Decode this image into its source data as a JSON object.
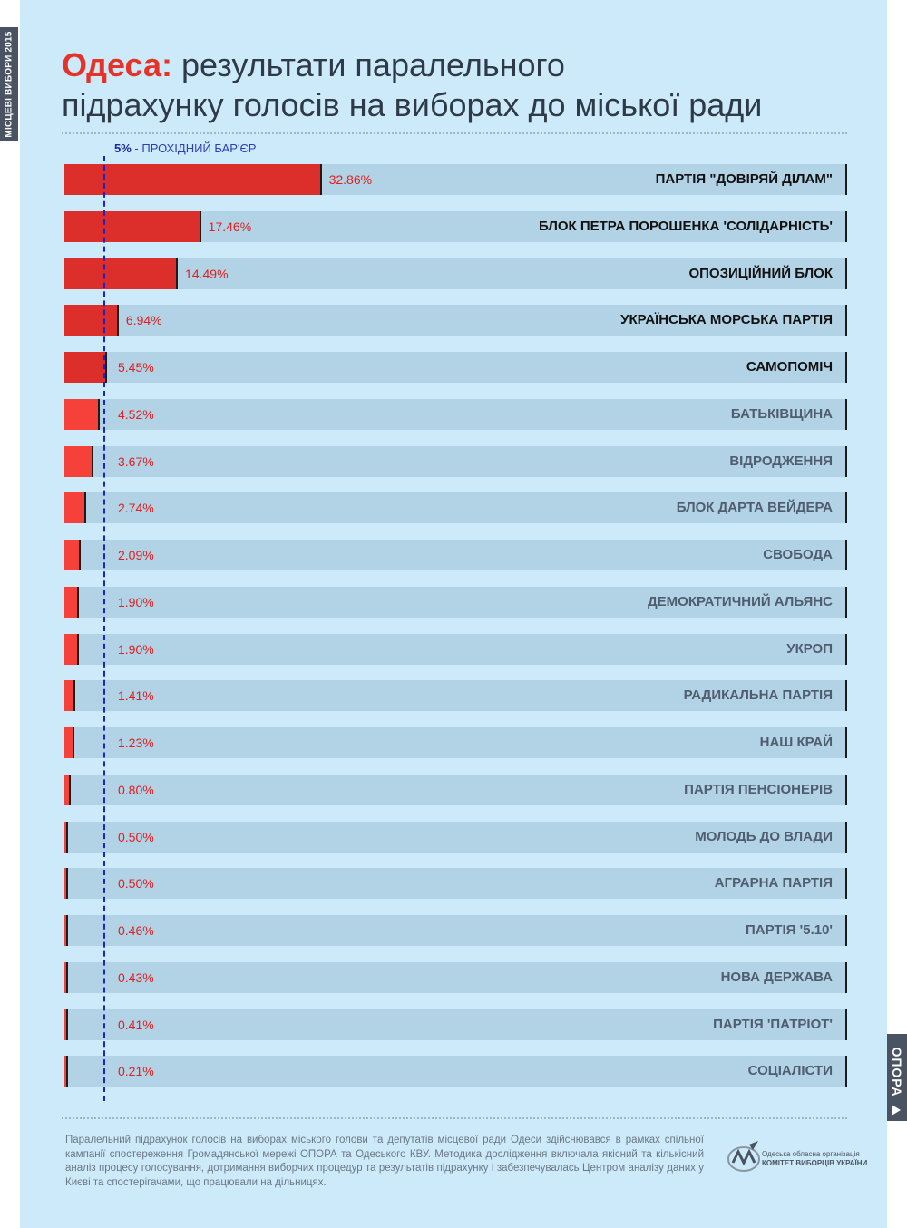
{
  "side_label": "МІСЦЕВІ ВИБОРИ 2015",
  "title": {
    "city": "Одеса:",
    "line1": "результати паралельного",
    "line2": "підрахунку голосів на виборах до міської ради"
  },
  "barrier": {
    "value_label": "5%",
    "text": "- ПРОХІДНИЙ БАР'ЄР",
    "value": 5
  },
  "colors": {
    "passed_bar": "#dc2f2c",
    "failed_bar": "#f6403a",
    "track": "#b2d2e5",
    "passed_label": "#111111",
    "failed_label": "#4f5d6e",
    "percent": "#e02020",
    "barrier_line": "#1a25c8"
  },
  "chart_data": {
    "type": "bar",
    "orientation": "horizontal",
    "unit": "%",
    "xlim": [
      0,
      100
    ],
    "categories": [
      "ПАРТІЯ \"ДОВІРЯЙ ДІЛАМ\"",
      "БЛОК ПЕТРА ПОРОШЕНКА 'СОЛІДАРНІСТЬ'",
      "ОПОЗИЦІЙНИЙ БЛОК",
      "УКРАЇНСЬКА МОРСЬКА ПАРТІЯ",
      "САМОПОМІЧ",
      "БАТЬКІВЩИНА",
      "ВІДРОДЖЕННЯ",
      "БЛОК ДАРТА ВЕЙДЕРА",
      "СВОБОДА",
      "ДЕМОКРАТИЧНИЙ АЛЬЯНС",
      "УКРОП",
      "РАДИКАЛЬНА ПАРТІЯ",
      "НАШ КРАЙ",
      "ПАРТІЯ ПЕНСІОНЕРІВ",
      "МОЛОДЬ ДО ВЛАДИ",
      "АГРАРНА ПАРТІЯ",
      "ПАРТІЯ '5.10'",
      "НОВА ДЕРЖАВА",
      "ПАРТІЯ 'ПАТРІОТ'",
      "СОЦІАЛІСТИ"
    ],
    "values": [
      32.86,
      17.46,
      14.49,
      6.94,
      5.45,
      4.52,
      3.67,
      2.74,
      2.09,
      1.9,
      1.9,
      1.41,
      1.23,
      0.8,
      0.5,
      0.5,
      0.46,
      0.43,
      0.41,
      0.21
    ],
    "value_labels": [
      "32.86%",
      "17.46%",
      "14.49%",
      "6.94%",
      "5.45%",
      "4.52%",
      "3.67%",
      "2.74%",
      "2.09%",
      "1.90%",
      "1.90%",
      "1.41%",
      "1.23%",
      "0.80%",
      "0.50%",
      "0.50%",
      "0.46%",
      "0.43%",
      "0.41%",
      "0.21%"
    ],
    "reference_line": 5
  },
  "footer": {
    "text": "Паралельний підрахунок голосів на виборах міського голови та депутатів місцевої ради Одеси здійснювався в рамках спільної кампанії спостереження Громадянської мережі ОПОРА та Одеського КВУ. Методика дослідження включала якісний та кількісний аналіз процесу голосування, дотримання виборчих процедур та результатів підрахунку і забезпечувалась Центром аналізу даних у Києві та спостерігачами, що працювали на дільницях.",
    "kvu_line1": "Одеська обласна організація",
    "kvu_line2": "КОМІТЕТ ВИБОРЦІВ УКРАЇНИ"
  },
  "opora_tab": "ОПОРА"
}
